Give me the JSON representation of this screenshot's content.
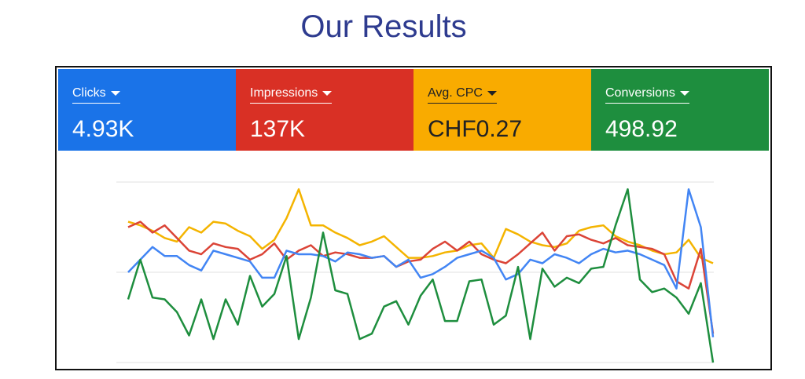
{
  "header": {
    "title": "Our Results"
  },
  "cards": [
    {
      "label": "Clicks",
      "value": "4.93K",
      "color": "#1a73e8",
      "text_color": "#ffffff"
    },
    {
      "label": "Impressions",
      "value": "137K",
      "color": "#d93025",
      "text_color": "#ffffff"
    },
    {
      "label": "Avg. CPC",
      "value": "CHF0.27",
      "color": "#f9ab00",
      "text_color": "#202124"
    },
    {
      "label": "Conversions",
      "value": "498.92",
      "color": "#1e8e3e",
      "text_color": "#ffffff"
    }
  ],
  "chart_data": {
    "type": "line",
    "ylim": [
      0,
      100
    ],
    "grid": true,
    "series": [
      {
        "color": "#f4b400",
        "values": [
          78,
          76,
          73,
          69,
          67,
          75,
          72,
          78,
          77,
          73,
          70,
          63,
          68,
          80,
          96,
          76,
          76,
          72,
          69,
          65,
          67,
          70,
          64,
          58,
          58,
          59,
          61,
          62,
          65,
          66,
          58,
          74,
          71,
          67,
          65,
          64,
          66,
          73,
          75,
          76,
          70,
          67,
          65,
          62,
          60,
          61,
          68,
          58,
          55
        ]
      },
      {
        "color": "#db4437",
        "values": [
          75,
          78,
          72,
          76,
          69,
          62,
          60,
          66,
          64,
          63,
          57,
          60,
          66,
          57,
          62,
          65,
          59,
          61,
          60,
          58,
          58,
          59,
          53,
          56,
          57,
          63,
          67,
          62,
          67,
          60,
          57,
          55,
          60,
          66,
          72,
          62,
          70,
          71,
          68,
          66,
          69,
          65,
          64,
          63,
          60,
          45,
          41,
          63,
          16
        ]
      },
      {
        "color": "#4285f4",
        "values": [
          50,
          57,
          64,
          59,
          59,
          54,
          51,
          62,
          60,
          58,
          56,
          47,
          47,
          62,
          60,
          60,
          59,
          56,
          61,
          60,
          58,
          59,
          53,
          57,
          47,
          49,
          53,
          58,
          60,
          62,
          58,
          46,
          49,
          57,
          55,
          60,
          58,
          55,
          60,
          63,
          61,
          62,
          60,
          57,
          54,
          41,
          96,
          75,
          14
        ]
      },
      {
        "color": "#1e8e3e",
        "values": [
          35,
          57,
          36,
          35,
          28,
          15,
          35,
          13,
          35,
          21,
          48,
          31,
          38,
          59,
          13,
          36,
          72,
          40,
          38,
          13,
          16,
          31,
          34,
          21,
          37,
          46,
          23,
          23,
          45,
          46,
          21,
          26,
          53,
          13,
          52,
          42,
          47,
          44,
          52,
          53,
          76,
          96,
          46,
          39,
          41,
          36,
          27,
          44,
          0
        ]
      }
    ]
  }
}
